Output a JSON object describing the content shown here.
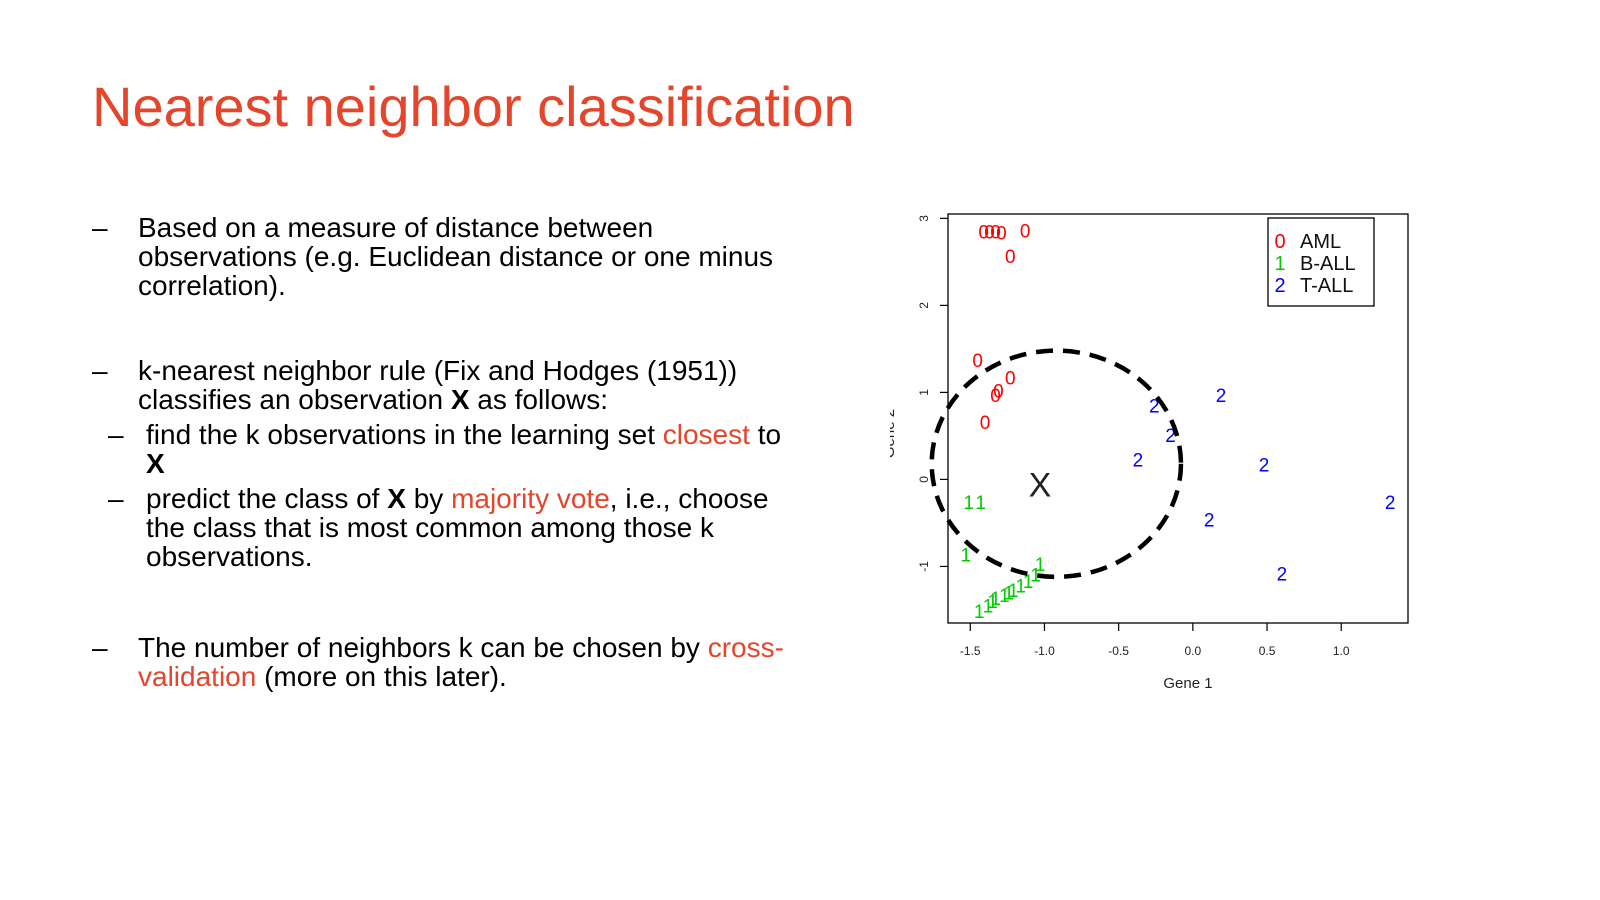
{
  "slide": {
    "title": "Nearest neighbor classification",
    "bullets": [
      {
        "dash": "–",
        "text": "Based on a measure of distance between observations (e.g. Euclidean distance or one minus correlation)."
      },
      {
        "dash": "–",
        "p1": "k-nearest neighbor rule (Fix and Hodges (1951)) classifies an observation ",
        "x": "X",
        "p2": " as follows:",
        "subs": [
          {
            "dash": "–",
            "p1": "find the k observations in the learning set ",
            "hl": "closest",
            "p2": " to ",
            "x": "X"
          },
          {
            "dash": "–",
            "p1": "predict the class of ",
            "x": "X",
            "p2": " by ",
            "hl": "majority vote",
            "p3": ",  i.e., choose the class that is most common among those k observations."
          }
        ]
      },
      {
        "dash": "–",
        "p1": "The number of neighbors k can be chosen by ",
        "hl": "cross-validation",
        "p2": " (more on this later)."
      }
    ]
  },
  "chart_data": {
    "type": "scatter",
    "xlabel": "Gene 1",
    "ylabel": "Gene 2",
    "xlim": [
      -1.65,
      1.45
    ],
    "ylim": [
      -1.65,
      3.05
    ],
    "xticks": [
      -1.5,
      -1.0,
      -0.5,
      0.0,
      0.5,
      1.0
    ],
    "xtick_labels": [
      "-1.5",
      "-1.0",
      "-0.5",
      "0.0",
      "0.5",
      "1.0"
    ],
    "yticks": [
      -1,
      0,
      1,
      2,
      3
    ],
    "ytick_labels": [
      "-1",
      "0",
      "1",
      "2",
      "3"
    ],
    "grid": false,
    "legend": {
      "position": "top-right"
    },
    "series": [
      {
        "name": "AML",
        "symbol": "0",
        "color": "#ff0000",
        "points": [
          [
            -1.41,
            2.85
          ],
          [
            -1.37,
            2.85
          ],
          [
            -1.33,
            2.85
          ],
          [
            -1.29,
            2.84
          ],
          [
            -1.13,
            2.86
          ],
          [
            -1.23,
            2.57
          ],
          [
            -1.45,
            1.37
          ],
          [
            -1.23,
            1.17
          ],
          [
            -1.31,
            1.02
          ],
          [
            -1.33,
            0.97
          ],
          [
            -1.4,
            0.66
          ]
        ]
      },
      {
        "name": "B-ALL",
        "symbol": "1",
        "color": "#00cc00",
        "points": [
          [
            -1.51,
            -0.26
          ],
          [
            -1.43,
            -0.26
          ],
          [
            -1.53,
            -0.86
          ],
          [
            -1.44,
            -1.51
          ],
          [
            -1.38,
            -1.45
          ],
          [
            -1.35,
            -1.4
          ],
          [
            -1.33,
            -1.36
          ],
          [
            -1.27,
            -1.33
          ],
          [
            -1.24,
            -1.3
          ],
          [
            -1.21,
            -1.27
          ],
          [
            -1.16,
            -1.22
          ],
          [
            -1.11,
            -1.17
          ],
          [
            -1.06,
            -1.09
          ],
          [
            -1.03,
            -0.97
          ]
        ]
      },
      {
        "name": "T-ALL",
        "symbol": "2",
        "color": "#0000ff",
        "points": [
          [
            -0.26,
            0.85
          ],
          [
            0.19,
            0.97
          ],
          [
            -0.15,
            0.51
          ],
          [
            -0.37,
            0.23
          ],
          [
            0.48,
            0.17
          ],
          [
            0.11,
            -0.46
          ],
          [
            1.33,
            -0.26
          ],
          [
            0.6,
            -1.08
          ]
        ]
      }
    ],
    "annotations": [
      {
        "text": "X",
        "x": -1.03,
        "y": -0.06
      }
    ],
    "neighborhood_circle": {
      "center": [
        -0.92,
        0.18
      ],
      "rx": 0.84,
      "ry": 1.3,
      "style": "dashed"
    }
  }
}
